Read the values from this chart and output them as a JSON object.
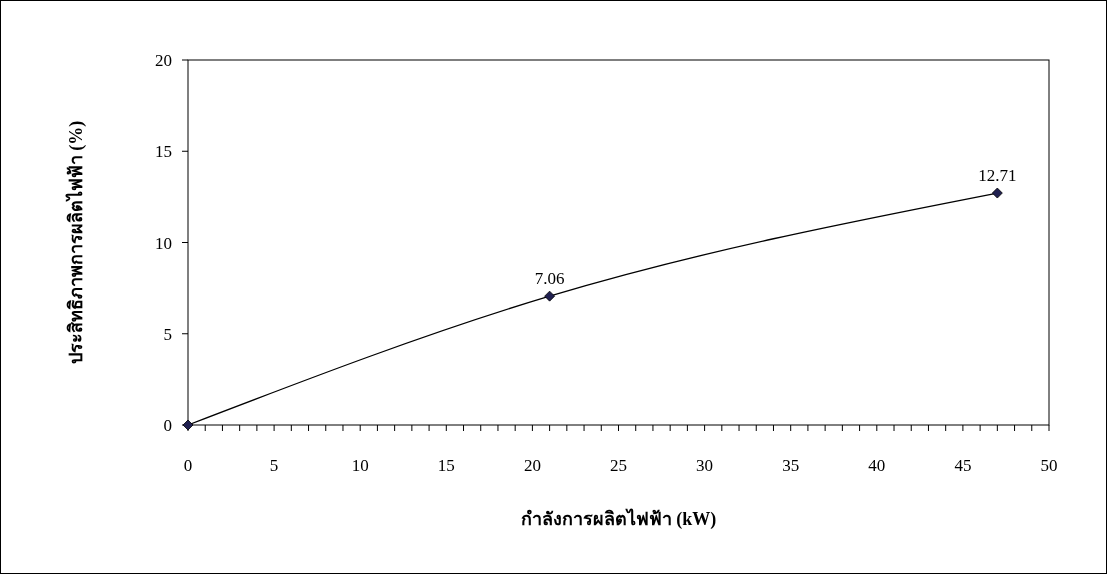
{
  "chart_data": {
    "type": "line",
    "xlabel": "กำลังการผลิตไฟฟ้า (kW)",
    "ylabel": "ประสิทธิภาพการผลิตไฟฟ้า (%)",
    "x": [
      0,
      21,
      47
    ],
    "series": [
      {
        "color": "#000000",
        "values": [
          0,
          7.06,
          12.71
        ],
        "value_labels": [
          null,
          "7.06",
          "12.71"
        ]
      }
    ],
    "marker": "diamond",
    "line_style": "solid",
    "grid": false,
    "xlim": [
      0,
      50
    ],
    "ylim": [
      0,
      20
    ],
    "yticks": [
      0,
      5,
      10,
      15,
      20
    ],
    "xticks": [
      0,
      {
        "value": 1,
        "label": null
      },
      {
        "value": 2,
        "label": null
      },
      {
        "value": 3,
        "label": null
      },
      {
        "value": 4,
        "label": null
      },
      5,
      {
        "value": 6,
        "label": null
      },
      {
        "value": 7,
        "label": null
      },
      {
        "value": 8,
        "label": null
      },
      {
        "value": 9,
        "label": null
      },
      10,
      {
        "value": 11,
        "label": null
      },
      {
        "value": 12,
        "label": null
      },
      {
        "value": 13,
        "label": null
      },
      {
        "value": 14,
        "label": null
      },
      15,
      {
        "value": 16,
        "label": null
      },
      {
        "value": 17,
        "label": null
      },
      {
        "value": 18,
        "label": null
      },
      {
        "value": 19,
        "label": null
      },
      20,
      {
        "value": 21,
        "label": null
      },
      {
        "value": 22,
        "label": null
      },
      {
        "value": 23,
        "label": null
      },
      {
        "value": 24,
        "label": null
      },
      25,
      {
        "value": 26,
        "label": null
      },
      {
        "value": 27,
        "label": null
      },
      {
        "value": 28,
        "label": null
      },
      {
        "value": 29,
        "label": null
      },
      30,
      {
        "value": 31,
        "label": null
      },
      {
        "value": 32,
        "label": null
      },
      {
        "value": 33,
        "label": null
      },
      {
        "value": 34,
        "label": null
      },
      35,
      {
        "value": 36,
        "label": null
      },
      {
        "value": 37,
        "label": null
      },
      {
        "value": 38,
        "label": null
      },
      {
        "value": 39,
        "label": null
      },
      40,
      {
        "value": 41,
        "label": null
      },
      {
        "value": 42,
        "label": null
      },
      {
        "value": 43,
        "label": null
      },
      {
        "value": 44,
        "label": null
      },
      45,
      {
        "value": 46,
        "label": null
      },
      {
        "value": 47,
        "label": null
      },
      {
        "value": 48,
        "label": null
      },
      {
        "value": 49,
        "label": null
      },
      50
    ]
  }
}
